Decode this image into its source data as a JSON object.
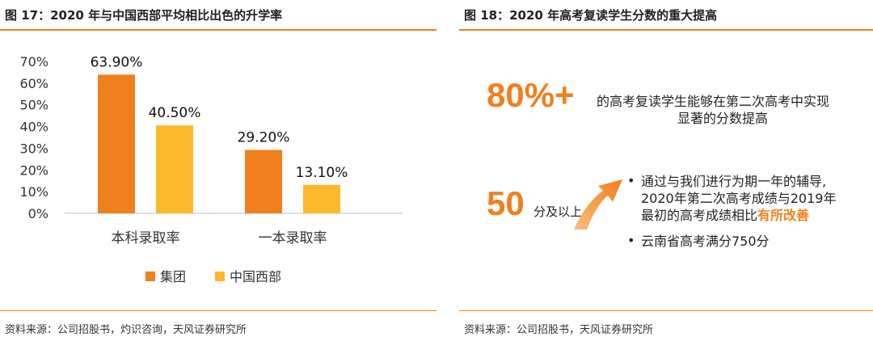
{
  "left": {
    "title": "图 17：2020 年与中国西部平均相比出色的升学率",
    "source": "资料来源：公司招股书，灼识咨询，天风证券研究所"
  },
  "right": {
    "title": "图 18：2020 年高考复读学生分数的重大提高",
    "source": "资料来源：公司招股书，天风证券研究所",
    "stat1_value": "80%+",
    "stat1_desc_line1": "的高考复读学生能够在第二次高考中实现",
    "stat1_desc_line2": "显著的分数提高",
    "stat2_value": "50",
    "stat2_unit": "分及以上",
    "bullet1_line1": "通过与我们进行为期一年的辅导,",
    "bullet1_line2": "2020年第二次高考成绩与2019年",
    "bullet1_line3_prefix": "最初的高考成绩相比",
    "bullet1_line3_highlight": "有所改善",
    "bullet2": "云南省高考满分750分",
    "bullet_symbol": "•",
    "accent_color": "#f07f1e",
    "arrow_icon": "up-right-arrow-icon"
  },
  "chart_data": {
    "type": "bar",
    "categories": [
      "本科录取率",
      "一本录取率"
    ],
    "series": [
      {
        "name": "集团",
        "values": [
          63.9,
          29.2
        ],
        "labels": [
          "63.90%",
          "29.20%"
        ],
        "color": "#f07f1e"
      },
      {
        "name": "中国西部",
        "values": [
          40.5,
          13.1
        ],
        "labels": [
          "40.50%",
          "13.10%"
        ],
        "color": "#fbb92b"
      }
    ],
    "yticks": [
      "0%",
      "10%",
      "20%",
      "30%",
      "40%",
      "50%",
      "60%",
      "70%"
    ],
    "ylim": [
      0,
      70
    ],
    "grid": false,
    "legend": "bottom"
  }
}
